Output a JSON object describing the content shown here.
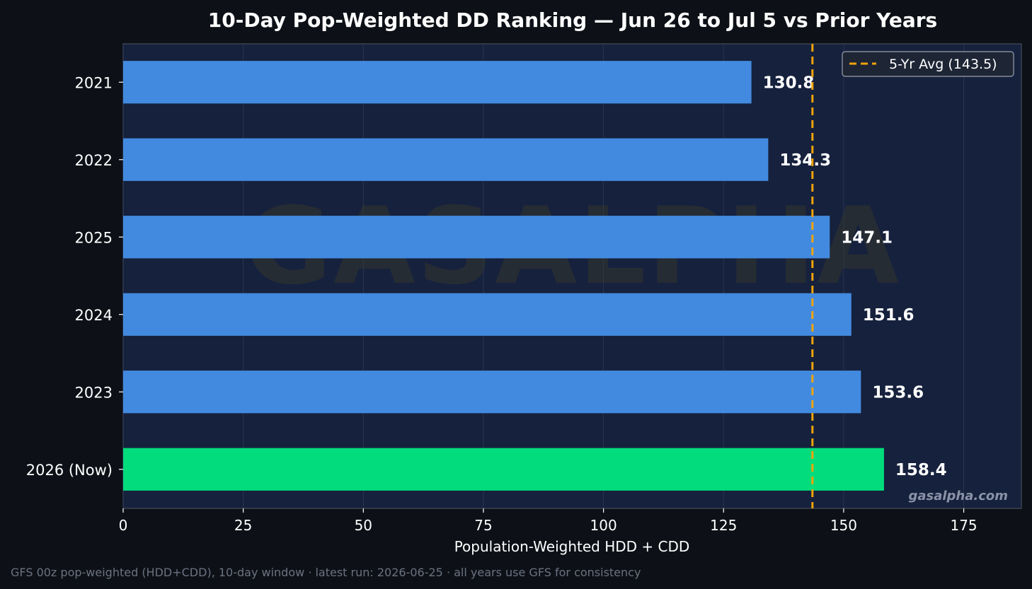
{
  "chart_data": {
    "type": "bar",
    "orientation": "horizontal",
    "title": "10-Day Pop-Weighted DD Ranking — Jun 26 to Jul 5 vs Prior Years",
    "xlabel": "Population-Weighted HDD + CDD",
    "ylabel": "",
    "xlim": [
      0,
      187
    ],
    "xticks": [
      0,
      25,
      50,
      75,
      100,
      125,
      150,
      175
    ],
    "categories": [
      "2021",
      "2022",
      "2025",
      "2024",
      "2023",
      "2026 (Now)"
    ],
    "values": [
      130.8,
      134.3,
      147.1,
      151.6,
      153.6,
      158.4
    ],
    "value_labels": [
      "130.8",
      "134.3",
      "147.1",
      "151.6",
      "153.6",
      "158.4"
    ],
    "highlight_index": 5,
    "reference_line": {
      "value": 143.5,
      "label": "5-Yr Avg (143.5)",
      "style": "dashed"
    },
    "grid": "vertical",
    "legend": "top-right",
    "colors": {
      "bar": "#428ae0",
      "highlight": "#02dc7c",
      "reference": "#f0a30a",
      "plot_bg": "#16213d",
      "page_bg": "#0d1117"
    }
  },
  "watermark": "GASALPHA",
  "brand": "gasalpha.com",
  "footer": "GFS 00z pop-weighted (HDD+CDD), 10-day window  ·  latest run: 2026-06-25  ·  all years use GFS for consistency"
}
